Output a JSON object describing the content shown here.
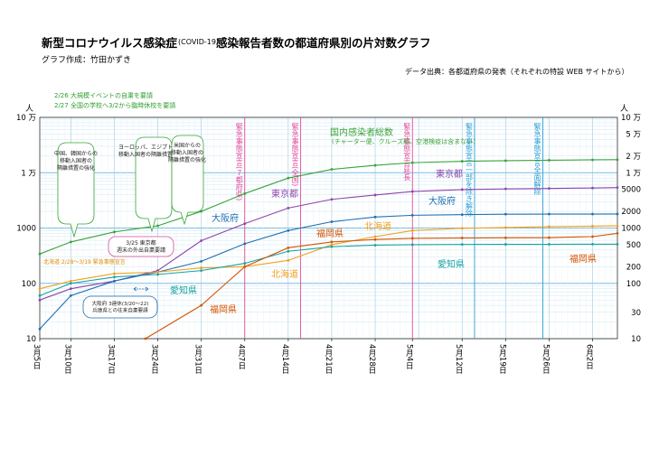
{
  "header": {
    "title_left": "新型コロナウイルス感染症",
    "title_covid": "(COVID-19)",
    "title_right": "感染報告者数の都道府県別の片対数グラフ",
    "author": "グラフ作成：竹田かずき",
    "source": "データ出典：各都道府県の発表（それぞれの特設 WEB サイトから）"
  },
  "annotations": {
    "event1": "2/26 大規模イベントの自粛を要請",
    "event2": "2/27 全国の学校へ3/2から臨時休校を要請",
    "hokkaido_note": "北海道 2/28〜3/19 緊急事態宣言",
    "tokyo_note": "3/25 東京都\n週末の外出自粛要請",
    "osaka_note": "大阪府 3連休(3/20〜22)\n兵庫県との往来自粛要請",
    "bubble_china": "中国、韓国からの\n移動入国者の\n隔離措置の強化",
    "bubble_europe": "ヨーロッパ、エジプトからの\n移動入国者の隔離措置の強化",
    "bubble_us": "米国からの\n移動入国者の\n隔離措置の強化",
    "total_note": "(チャーター便、クルーズ船、空港検疫は含まない)"
  },
  "vlines": [
    {
      "label": "緊急事態宣言(７都府県)",
      "color": "#e04b9b"
    },
    {
      "label": "緊急事態宣言(全国)",
      "color": "#e04b9b"
    },
    {
      "label": "緊急事態宣言延長",
      "color": "#e04b9b"
    },
    {
      "label": "緊急事態宣言一部を除き解除",
      "color": "#2a9fd6"
    },
    {
      "label": "緊急事態宣言全面解除",
      "color": "#2a9fd6"
    }
  ],
  "chart_data": {
    "type": "line",
    "yscale": "log",
    "ylim": [
      10,
      100000
    ],
    "ylabel_left": "人",
    "ylabel_right": "人",
    "y_ticks_left": [
      "10",
      "100",
      "1000",
      "1 万",
      "10 万"
    ],
    "y_ticks_right": [
      "10",
      "30",
      "100",
      "200",
      "500",
      "1000",
      "2000",
      "5000",
      "1 万",
      "2 万",
      "5 万",
      "10 万"
    ],
    "x_ticks": [
      "3月5日",
      "3月10日",
      "3月17日",
      "3月24日",
      "3月31日",
      "4月7日",
      "4月14日",
      "4月21日",
      "4月28日",
      "5月4日",
      "5月12日",
      "5月19日",
      "5月26日",
      "6月2日"
    ],
    "xlim": [
      "2020-03-05",
      "2020-06-06"
    ],
    "grid": true,
    "series": [
      {
        "name": "国内感染者総数",
        "color": "#3aa33a",
        "x": [
          "2020-03-05",
          "2020-03-10",
          "2020-03-17",
          "2020-03-24",
          "2020-03-31",
          "2020-04-07",
          "2020-04-14",
          "2020-04-21",
          "2020-04-28",
          "2020-05-04",
          "2020-05-12",
          "2020-05-19",
          "2020-05-26",
          "2020-06-02",
          "2020-06-06"
        ],
        "y": [
          340,
          560,
          850,
          1100,
          2000,
          4200,
          8000,
          11500,
          13600,
          15200,
          16100,
          16500,
          16800,
          17100,
          17200
        ]
      },
      {
        "name": "東京都",
        "color": "#8e44ad",
        "x": [
          "2020-03-05",
          "2020-03-10",
          "2020-03-17",
          "2020-03-24",
          "2020-03-31",
          "2020-04-07",
          "2020-04-14",
          "2020-04-21",
          "2020-04-28",
          "2020-05-04",
          "2020-05-12",
          "2020-05-19",
          "2020-05-26",
          "2020-06-02",
          "2020-06-06"
        ],
        "y": [
          50,
          80,
          110,
          170,
          590,
          1200,
          2300,
          3300,
          3950,
          4570,
          4950,
          5100,
          5200,
          5300,
          5400
        ]
      },
      {
        "name": "大阪府",
        "color": "#1f6fb2",
        "x": [
          "2020-03-05",
          "2020-03-10",
          "2020-03-17",
          "2020-03-24",
          "2020-03-31",
          "2020-04-07",
          "2020-04-14",
          "2020-04-21",
          "2020-04-28",
          "2020-05-04",
          "2020-05-12",
          "2020-05-19",
          "2020-05-26",
          "2020-06-02",
          "2020-06-06"
        ],
        "y": [
          15,
          60,
          110,
          160,
          250,
          520,
          900,
          1300,
          1580,
          1700,
          1750,
          1780,
          1790,
          1790,
          1795
        ]
      },
      {
        "name": "北海道",
        "color": "#f0a020",
        "x": [
          "2020-03-05",
          "2020-03-10",
          "2020-03-17",
          "2020-03-24",
          "2020-03-31",
          "2020-04-07",
          "2020-04-14",
          "2020-04-21",
          "2020-04-28",
          "2020-05-04",
          "2020-05-12",
          "2020-05-19",
          "2020-05-26",
          "2020-06-02",
          "2020-06-06"
        ],
        "y": [
          80,
          110,
          150,
          160,
          190,
          200,
          260,
          500,
          700,
          900,
          990,
          1020,
          1060,
          1080,
          1100
        ]
      },
      {
        "name": "愛知県",
        "color": "#17a2a2",
        "x": [
          "2020-03-05",
          "2020-03-10",
          "2020-03-17",
          "2020-03-24",
          "2020-03-31",
          "2020-04-07",
          "2020-04-14",
          "2020-04-21",
          "2020-04-28",
          "2020-05-04",
          "2020-05-12",
          "2020-05-19",
          "2020-05-26",
          "2020-06-02",
          "2020-06-06"
        ],
        "y": [
          60,
          100,
          130,
          145,
          170,
          230,
          380,
          460,
          490,
          500,
          505,
          507,
          508,
          510,
          510
        ]
      },
      {
        "name": "福岡県",
        "color": "#d35400",
        "x": [
          "2020-03-22",
          "2020-03-31",
          "2020-04-07",
          "2020-04-14",
          "2020-04-21",
          "2020-04-28",
          "2020-05-04",
          "2020-05-12",
          "2020-05-19",
          "2020-05-26",
          "2020-06-02",
          "2020-06-06"
        ],
        "y": [
          10,
          40,
          200,
          440,
          560,
          620,
          650,
          660,
          665,
          670,
          700,
          800
        ]
      }
    ]
  }
}
